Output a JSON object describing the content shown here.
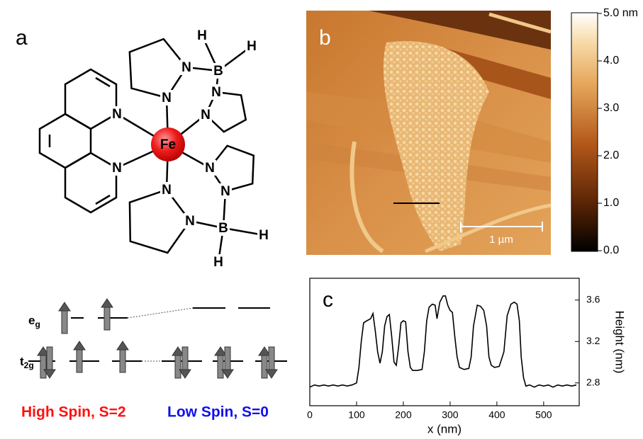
{
  "panel_a": {
    "label": "a",
    "atoms": [
      "Fe",
      "N",
      "N",
      "N",
      "N",
      "B",
      "H",
      "H",
      "N",
      "N",
      "N",
      "N",
      "B",
      "H",
      "H",
      "N",
      "N"
    ]
  },
  "energy_diagram": {
    "eg": {
      "base": "e",
      "sub": "g"
    },
    "t2g": {
      "base": "t",
      "sub": "2g"
    },
    "high_spin": "High Spin, S=2",
    "low_spin": "Low Spin, S=0"
  },
  "panel_b": {
    "label": "b",
    "scale_bar": "1 µm",
    "colorbar": {
      "range": [
        0,
        5
      ],
      "ticks": [
        {
          "value": 0,
          "label": "0.0"
        },
        {
          "value": 1,
          "label": "1.0"
        },
        {
          "value": 2,
          "label": "2.0"
        },
        {
          "value": 3,
          "label": "3.0"
        },
        {
          "value": 4,
          "label": "4.0"
        },
        {
          "value": 5,
          "label": "5.0 nm"
        }
      ]
    }
  },
  "chart_data": {
    "type": "line",
    "panel_label": "c",
    "x_label": "x (nm)",
    "y_label": "Height (nm)",
    "x": [
      0,
      10,
      20,
      30,
      40,
      50,
      60,
      70,
      80,
      90,
      100,
      105,
      110,
      115,
      122,
      130,
      135,
      140,
      145,
      150,
      155,
      160,
      165,
      170,
      175,
      180,
      185,
      190,
      195,
      200,
      205,
      210,
      215,
      220,
      230,
      240,
      245,
      250,
      255,
      262,
      268,
      272,
      278,
      285,
      290,
      295,
      300,
      305,
      310,
      315,
      320,
      330,
      340,
      345,
      350,
      358,
      365,
      372,
      378,
      383,
      388,
      395,
      405,
      415,
      422,
      430,
      437,
      443,
      448,
      452,
      457,
      462,
      470,
      480,
      490,
      500,
      510,
      520,
      530,
      540,
      550,
      560,
      570
    ],
    "series": [
      {
        "color": "#000000",
        "values": [
          2.76,
          2.78,
          2.77,
          2.78,
          2.77,
          2.78,
          2.77,
          2.78,
          2.77,
          2.78,
          2.8,
          2.95,
          3.2,
          3.38,
          3.4,
          3.42,
          3.47,
          3.3,
          3.1,
          2.99,
          3.1,
          3.35,
          3.44,
          3.46,
          3.25,
          3.0,
          2.97,
          3.15,
          3.38,
          3.4,
          3.39,
          3.1,
          2.95,
          2.92,
          2.92,
          2.93,
          3.1,
          3.4,
          3.53,
          3.56,
          3.55,
          3.42,
          3.58,
          3.64,
          3.64,
          3.55,
          3.5,
          3.48,
          3.25,
          3.05,
          2.95,
          2.93,
          2.94,
          3.05,
          3.35,
          3.55,
          3.54,
          3.5,
          3.35,
          3.05,
          2.97,
          2.95,
          2.96,
          3.1,
          3.45,
          3.56,
          3.58,
          3.56,
          3.4,
          3.05,
          2.85,
          2.77,
          2.78,
          2.76,
          2.78,
          2.77,
          2.78,
          2.76,
          2.78,
          2.77,
          2.78,
          2.77,
          2.78
        ]
      }
    ],
    "xlim": [
      0,
      576
    ],
    "ylim": [
      2.58,
      3.81
    ],
    "xticks": [
      0,
      100,
      200,
      300,
      400,
      500
    ],
    "yticks": [
      2.8,
      3.2,
      3.6
    ]
  }
}
